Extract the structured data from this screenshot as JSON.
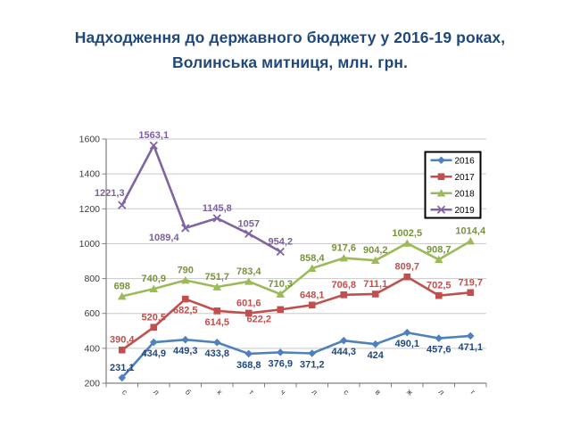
{
  "title": {
    "line1": "Надходження до державного бюджету у 2016-19 роках,",
    "line2": "Волинська митниця, млн. грн."
  },
  "colors": {
    "title_text": "#1F497D",
    "axis": "#7F7F7F",
    "gridline": "#C9C9C9",
    "tick_label": "#3A3A3A",
    "background": "#FFFFFF",
    "legend_border": "#000000",
    "legend_text": "#000000"
  },
  "chart_data": {
    "type": "line",
    "title": "Надходження до державного бюджету у 2016-19 роках, Волинська митниця, млн. грн.",
    "x": [
      "с",
      "л",
      "б",
      "к",
      "т",
      "ч",
      "л",
      "с",
      "в",
      "ж",
      "л",
      "г"
    ],
    "x_axis_style": "rotated month-initial letters",
    "ylim": [
      200,
      1600
    ],
    "y_step": 200,
    "y_ticks": [
      200,
      400,
      600,
      800,
      1000,
      1200,
      1400,
      1600
    ],
    "grid": true,
    "legend_position": "top-right-inside",
    "decimal_separator": ",",
    "series": [
      {
        "name": "2016",
        "color": "#4F81BD",
        "label_color": "#1F497D",
        "marker": "diamond",
        "values": [
          231.1,
          434.9,
          449.3,
          433.8,
          368.8,
          376.9,
          371.2,
          444.3,
          424,
          490.1,
          457.6,
          471.1
        ],
        "label_pos": [
          "a",
          "b",
          "b",
          "b",
          "b",
          "b",
          "b",
          "b",
          "b",
          "b",
          "b",
          "b"
        ]
      },
      {
        "name": "2017",
        "color": "#C0504D",
        "label_color": "#C0504D",
        "marker": "square",
        "values": [
          390.4,
          520.5,
          682.5,
          614.5,
          601.6,
          622.2,
          648.1,
          706.8,
          711.1,
          809.7,
          702.5,
          719.7
        ],
        "label_pos": [
          "a",
          "a",
          "b",
          "b",
          "a",
          "bl",
          "a",
          "a",
          "a",
          "a",
          "a",
          "a"
        ]
      },
      {
        "name": "2018",
        "color": "#9BBB59",
        "label_color": "#77933C",
        "marker": "triangle",
        "values": [
          698,
          740.9,
          790,
          751.7,
          783.4,
          710.3,
          858.4,
          917.6,
          904.2,
          1002.5,
          908.7,
          1014.4
        ],
        "label_pos": [
          "a",
          "a",
          "a",
          "a",
          "a",
          "a",
          "a",
          "a",
          "a",
          "a",
          "a",
          "a"
        ]
      },
      {
        "name": "2019",
        "color": "#8064A2",
        "label_color": "#7D60A0",
        "marker": "x",
        "values": [
          1221.3,
          1563.1,
          1089.4,
          1145.8,
          1057,
          954.2
        ],
        "label_pos": [
          "al",
          "a",
          "bl",
          "a",
          "a",
          "a"
        ]
      }
    ]
  }
}
